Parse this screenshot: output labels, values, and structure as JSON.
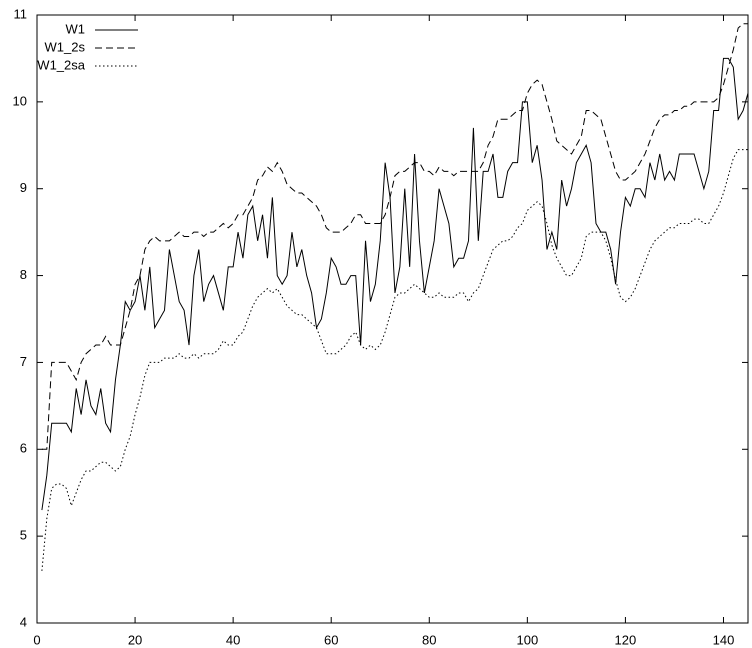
{
  "chart_data": {
    "type": "line",
    "x": [
      1,
      2,
      3,
      4,
      5,
      6,
      7,
      8,
      9,
      10,
      11,
      12,
      13,
      14,
      15,
      16,
      17,
      18,
      19,
      20,
      21,
      22,
      23,
      24,
      25,
      26,
      27,
      28,
      29,
      30,
      31,
      32,
      33,
      34,
      35,
      36,
      37,
      38,
      39,
      40,
      41,
      42,
      43,
      44,
      45,
      46,
      47,
      48,
      49,
      50,
      51,
      52,
      53,
      54,
      55,
      56,
      57,
      58,
      59,
      60,
      61,
      62,
      63,
      64,
      65,
      66,
      67,
      68,
      69,
      70,
      71,
      72,
      73,
      74,
      75,
      76,
      77,
      78,
      79,
      80,
      81,
      82,
      83,
      84,
      85,
      86,
      87,
      88,
      89,
      90,
      91,
      92,
      93,
      94,
      95,
      96,
      97,
      98,
      99,
      100,
      101,
      102,
      103,
      104,
      105,
      106,
      107,
      108,
      109,
      110,
      111,
      112,
      113,
      114,
      115,
      116,
      117,
      118,
      119,
      120,
      121,
      122,
      123,
      124,
      125,
      126,
      127,
      128,
      129,
      130,
      131,
      132,
      133,
      134,
      135,
      136,
      137,
      138,
      139,
      140,
      141,
      142,
      143,
      144,
      145
    ],
    "series": [
      {
        "name": "W1",
        "color": "#000000",
        "dash": "solid",
        "values": [
          5.3,
          5.7,
          6.3,
          6.3,
          6.3,
          6.3,
          6.2,
          6.7,
          6.4,
          6.8,
          6.5,
          6.4,
          6.7,
          6.3,
          6.2,
          6.8,
          7.2,
          7.7,
          7.6,
          7.7,
          8.0,
          7.6,
          8.1,
          7.4,
          7.5,
          7.6,
          8.3,
          8.0,
          7.7,
          7.6,
          7.2,
          8.0,
          8.3,
          7.7,
          7.9,
          8.0,
          7.8,
          7.6,
          8.1,
          8.1,
          8.5,
          8.2,
          8.7,
          8.8,
          8.4,
          8.7,
          8.2,
          8.9,
          8.0,
          7.9,
          8.0,
          8.5,
          8.1,
          8.3,
          8.0,
          7.8,
          7.4,
          7.5,
          7.8,
          8.2,
          8.1,
          7.9,
          7.9,
          8.0,
          8.0,
          7.2,
          8.4,
          7.7,
          7.9,
          8.4,
          9.3,
          8.9,
          7.8,
          8.1,
          9.0,
          8.1,
          9.4,
          8.4,
          7.8,
          8.1,
          8.4,
          9.0,
          8.8,
          8.6,
          8.1,
          8.2,
          8.2,
          8.4,
          9.7,
          8.4,
          9.2,
          9.2,
          9.4,
          8.9,
          8.9,
          9.2,
          9.3,
          9.3,
          10.0,
          10.0,
          9.3,
          9.5,
          9.1,
          8.3,
          8.5,
          8.3,
          9.1,
          8.8,
          9.0,
          9.3,
          9.4,
          9.5,
          9.3,
          8.6,
          8.5,
          8.5,
          8.3,
          7.9,
          8.5,
          8.9,
          8.8,
          9.0,
          9.0,
          8.9,
          9.3,
          9.1,
          9.4,
          9.1,
          9.2,
          9.1,
          9.4,
          9.4,
          9.4,
          9.4,
          9.2,
          9.0,
          9.2,
          9.9,
          9.9,
          10.5,
          10.5,
          10.4,
          9.8,
          9.9,
          10.1
        ]
      },
      {
        "name": "W1_2s",
        "color": "#000000",
        "dash": "dashed",
        "values": [
          6.0,
          6.0,
          7.0,
          7.0,
          7.0,
          7.0,
          6.9,
          6.8,
          7.0,
          7.1,
          7.15,
          7.2,
          7.2,
          7.3,
          7.2,
          7.2,
          7.2,
          7.4,
          7.6,
          7.9,
          8.0,
          8.3,
          8.4,
          8.45,
          8.4,
          8.4,
          8.4,
          8.45,
          8.5,
          8.45,
          8.45,
          8.5,
          8.5,
          8.45,
          8.5,
          8.5,
          8.55,
          8.6,
          8.55,
          8.6,
          8.7,
          8.7,
          8.8,
          8.9,
          9.1,
          9.15,
          9.25,
          9.2,
          9.3,
          9.2,
          9.05,
          9.0,
          8.95,
          8.95,
          8.9,
          8.85,
          8.8,
          8.7,
          8.55,
          8.5,
          8.5,
          8.5,
          8.55,
          8.6,
          8.7,
          8.7,
          8.6,
          8.6,
          8.6,
          8.6,
          8.7,
          8.9,
          9.15,
          9.2,
          9.2,
          9.25,
          9.3,
          9.3,
          9.2,
          9.2,
          9.15,
          9.25,
          9.2,
          9.2,
          9.15,
          9.2,
          9.2,
          9.2,
          9.2,
          9.2,
          9.3,
          9.5,
          9.6,
          9.8,
          9.8,
          9.8,
          9.85,
          9.9,
          9.9,
          10.1,
          10.2,
          10.25,
          10.2,
          10.0,
          9.8,
          9.55,
          9.5,
          9.45,
          9.4,
          9.5,
          9.6,
          9.9,
          9.9,
          9.85,
          9.8,
          9.6,
          9.4,
          9.2,
          9.1,
          9.1,
          9.15,
          9.2,
          9.3,
          9.4,
          9.55,
          9.7,
          9.8,
          9.85,
          9.85,
          9.9,
          9.9,
          9.95,
          9.95,
          10.0,
          10.0,
          10.0,
          10.0,
          10.0,
          10.05,
          10.2,
          10.4,
          10.6,
          10.85,
          10.9,
          10.9
        ]
      },
      {
        "name": "W1_2sa",
        "color": "#000000",
        "dash": "dotted",
        "values": [
          4.6,
          5.2,
          5.55,
          5.6,
          5.6,
          5.55,
          5.35,
          5.5,
          5.65,
          5.75,
          5.75,
          5.8,
          5.85,
          5.85,
          5.8,
          5.75,
          5.8,
          6.0,
          6.15,
          6.4,
          6.6,
          6.85,
          7.0,
          7.0,
          7.0,
          7.05,
          7.05,
          7.05,
          7.1,
          7.05,
          7.05,
          7.1,
          7.05,
          7.1,
          7.1,
          7.1,
          7.15,
          7.25,
          7.2,
          7.2,
          7.3,
          7.35,
          7.5,
          7.65,
          7.75,
          7.8,
          7.85,
          7.8,
          7.85,
          7.75,
          7.65,
          7.6,
          7.55,
          7.55,
          7.5,
          7.45,
          7.4,
          7.25,
          7.1,
          7.1,
          7.1,
          7.15,
          7.2,
          7.3,
          7.35,
          7.2,
          7.15,
          7.2,
          7.15,
          7.2,
          7.35,
          7.55,
          7.75,
          7.8,
          7.8,
          7.85,
          7.9,
          7.85,
          7.8,
          7.75,
          7.75,
          7.8,
          7.75,
          7.75,
          7.75,
          7.8,
          7.8,
          7.7,
          7.8,
          7.85,
          8.0,
          8.15,
          8.3,
          8.35,
          8.4,
          8.4,
          8.45,
          8.55,
          8.6,
          8.75,
          8.8,
          8.85,
          8.8,
          8.6,
          8.35,
          8.2,
          8.1,
          8.0,
          8.0,
          8.1,
          8.2,
          8.45,
          8.5,
          8.5,
          8.5,
          8.4,
          8.2,
          7.95,
          7.75,
          7.7,
          7.75,
          7.85,
          8.0,
          8.15,
          8.3,
          8.4,
          8.45,
          8.5,
          8.55,
          8.55,
          8.6,
          8.6,
          8.6,
          8.65,
          8.65,
          8.6,
          8.6,
          8.7,
          8.8,
          8.95,
          9.15,
          9.35,
          9.45,
          9.45,
          9.45
        ]
      }
    ],
    "xlim": [
      0,
      145
    ],
    "ylim": [
      4,
      11
    ],
    "xticks": [
      0,
      20,
      40,
      60,
      80,
      100,
      120,
      140
    ],
    "yticks": [
      4,
      5,
      6,
      7,
      8,
      9,
      10,
      11
    ],
    "legend": "top-left"
  }
}
